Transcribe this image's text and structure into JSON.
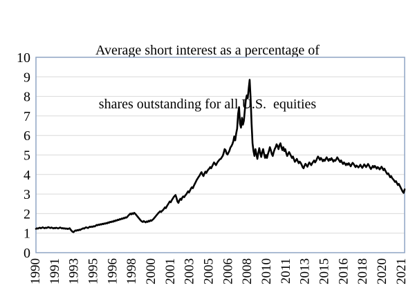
{
  "title_lines": [
    "Average short interest as a percentage of",
    "shares outstanding for all U.S.  equities"
  ],
  "colors": {
    "line": "#000000",
    "gridline": "#D9D9D9",
    "plot_border": "#8EA4C4",
    "text": "#000000",
    "background": "#FFFFFF"
  },
  "chart_data": {
    "type": "line",
    "title": "Average short interest as a percentage of shares outstanding for all U.S. equities",
    "xlabel": "",
    "ylabel": "",
    "x_unit": "monthly observations, Jan 1990 - Dec 2021",
    "ylim": [
      0,
      10
    ],
    "yticks": [
      0,
      1,
      2,
      3,
      4,
      5,
      6,
      7,
      8,
      9,
      10
    ],
    "grid": "horizontal",
    "legend": "none",
    "xticks": [
      {
        "index": 0,
        "label": "1990"
      },
      {
        "index": 20,
        "label": "1991"
      },
      {
        "index": 40,
        "label": "1993"
      },
      {
        "index": 60,
        "label": "1995"
      },
      {
        "index": 80,
        "label": "1996"
      },
      {
        "index": 100,
        "label": "1998"
      },
      {
        "index": 120,
        "label": "2000"
      },
      {
        "index": 140,
        "label": "2001"
      },
      {
        "index": 160,
        "label": "2003"
      },
      {
        "index": 180,
        "label": "2005"
      },
      {
        "index": 200,
        "label": "2006"
      },
      {
        "index": 220,
        "label": "2008"
      },
      {
        "index": 240,
        "label": "2010"
      },
      {
        "index": 260,
        "label": "2011"
      },
      {
        "index": 280,
        "label": "2013"
      },
      {
        "index": 300,
        "label": "2015"
      },
      {
        "index": 320,
        "label": "2016"
      },
      {
        "index": 340,
        "label": "2018"
      },
      {
        "index": 360,
        "label": "2020"
      },
      {
        "index": 380,
        "label": "2021"
      }
    ],
    "series_name": "Average short interest (% of shares outstanding)",
    "values": [
      1.22,
      1.25,
      1.23,
      1.26,
      1.28,
      1.25,
      1.27,
      1.3,
      1.27,
      1.25,
      1.28,
      1.26,
      1.29,
      1.31,
      1.28,
      1.26,
      1.29,
      1.27,
      1.24,
      1.27,
      1.25,
      1.28,
      1.26,
      1.24,
      1.26,
      1.29,
      1.27,
      1.24,
      1.26,
      1.23,
      1.25,
      1.22,
      1.24,
      1.21,
      1.23,
      1.25,
      1.18,
      1.12,
      1.07,
      1.05,
      1.1,
      1.14,
      1.12,
      1.16,
      1.14,
      1.18,
      1.16,
      1.2,
      1.22,
      1.25,
      1.23,
      1.27,
      1.3,
      1.28,
      1.26,
      1.3,
      1.33,
      1.31,
      1.34,
      1.32,
      1.36,
      1.34,
      1.38,
      1.42,
      1.4,
      1.44,
      1.42,
      1.46,
      1.44,
      1.48,
      1.46,
      1.5,
      1.48,
      1.52,
      1.5,
      1.55,
      1.53,
      1.58,
      1.56,
      1.6,
      1.58,
      1.63,
      1.61,
      1.66,
      1.64,
      1.69,
      1.67,
      1.72,
      1.7,
      1.75,
      1.73,
      1.78,
      1.76,
      1.81,
      1.79,
      1.84,
      1.9,
      1.95,
      2.0,
      1.96,
      2.02,
      1.98,
      2.04,
      2.0,
      1.94,
      1.88,
      1.82,
      1.76,
      1.7,
      1.64,
      1.6,
      1.57,
      1.62,
      1.58,
      1.55,
      1.6,
      1.57,
      1.63,
      1.6,
      1.66,
      1.63,
      1.68,
      1.72,
      1.78,
      1.84,
      1.9,
      1.96,
      2.02,
      2.07,
      2.12,
      2.08,
      2.14,
      2.18,
      2.25,
      2.32,
      2.28,
      2.38,
      2.46,
      2.54,
      2.62,
      2.58,
      2.68,
      2.76,
      2.84,
      2.9,
      2.95,
      2.8,
      2.62,
      2.55,
      2.68,
      2.76,
      2.7,
      2.82,
      2.88,
      2.84,
      2.92,
      2.98,
      3.06,
      3.14,
      3.08,
      3.18,
      3.28,
      3.35,
      3.3,
      3.42,
      3.52,
      3.62,
      3.72,
      3.8,
      3.88,
      3.95,
      4.05,
      4.12,
      4.0,
      3.92,
      4.05,
      4.15,
      4.08,
      4.18,
      4.25,
      4.3,
      4.38,
      4.32,
      4.42,
      4.52,
      4.62,
      4.55,
      4.48,
      4.58,
      4.66,
      4.72,
      4.78,
      4.8,
      4.88,
      4.95,
      5.1,
      5.3,
      5.25,
      5.08,
      5.02,
      5.12,
      5.22,
      5.38,
      5.45,
      5.55,
      5.7,
      5.95,
      5.75,
      6.1,
      6.35,
      7.1,
      7.45,
      6.6,
      6.4,
      6.9,
      6.55,
      6.75,
      7.3,
      7.8,
      8.05,
      7.9,
      8.4,
      8.85,
      7.9,
      6.6,
      5.6,
      5.2,
      4.95,
      5.3,
      5.05,
      4.8,
      5.1,
      5.35,
      5.1,
      4.9,
      5.15,
      5.3,
      5.05,
      4.85,
      5.0,
      4.85,
      5.05,
      5.2,
      5.4,
      5.25,
      5.05,
      4.95,
      5.15,
      5.3,
      5.4,
      5.55,
      5.45,
      5.3,
      5.5,
      5.6,
      5.4,
      5.25,
      5.4,
      5.2,
      5.3,
      5.1,
      4.95,
      5.05,
      5.15,
      5.05,
      4.95,
      4.85,
      4.92,
      4.78,
      4.65,
      4.72,
      4.8,
      4.68,
      4.58,
      4.66,
      4.6,
      4.5,
      4.38,
      4.32,
      4.45,
      4.55,
      4.48,
      4.4,
      4.52,
      4.62,
      4.55,
      4.48,
      4.58,
      4.65,
      4.72,
      4.62,
      4.7,
      4.82,
      4.92,
      4.85,
      4.75,
      4.85,
      4.78,
      4.68,
      4.76,
      4.7,
      4.8,
      4.88,
      4.78,
      4.7,
      4.8,
      4.74,
      4.84,
      4.76,
      4.66,
      4.74,
      4.7,
      4.78,
      4.88,
      4.8,
      4.72,
      4.64,
      4.72,
      4.62,
      4.54,
      4.62,
      4.56,
      4.48,
      4.56,
      4.5,
      4.58,
      4.5,
      4.42,
      4.52,
      4.6,
      4.54,
      4.46,
      4.38,
      4.46,
      4.42,
      4.36,
      4.42,
      4.5,
      4.42,
      4.34,
      4.42,
      4.52,
      4.46,
      4.38,
      4.46,
      4.54,
      4.46,
      4.36,
      4.28,
      4.36,
      4.44,
      4.36,
      4.44,
      4.38,
      4.3,
      4.38,
      4.34,
      4.26,
      4.32,
      4.4,
      4.32,
      4.22,
      4.3,
      4.2,
      4.1,
      4.02,
      4.06,
      3.96,
      3.86,
      3.92,
      3.82,
      3.76,
      3.7,
      3.62,
      3.66,
      3.56,
      3.46,
      3.52,
      3.42,
      3.32,
      3.22,
      3.12,
      3.06,
      3.24
    ]
  }
}
